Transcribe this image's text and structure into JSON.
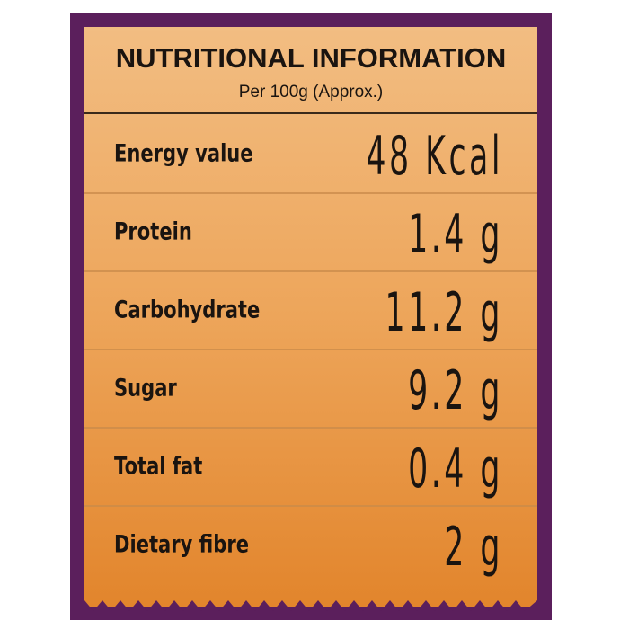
{
  "header": {
    "title": "NUTRITIONAL INFORMATION",
    "subtitle": "Per 100g (Approx.)"
  },
  "table": {
    "rows": [
      [
        "Energy value",
        "48 Kcal"
      ],
      [
        "Protein",
        "1.4 g"
      ],
      [
        "Carbohydrate",
        "11.2 g"
      ],
      [
        "Sugar",
        "9.2 g"
      ],
      [
        "Total fat",
        "0.4 g"
      ],
      [
        "Dietary fibre",
        "2 g"
      ]
    ]
  }
}
